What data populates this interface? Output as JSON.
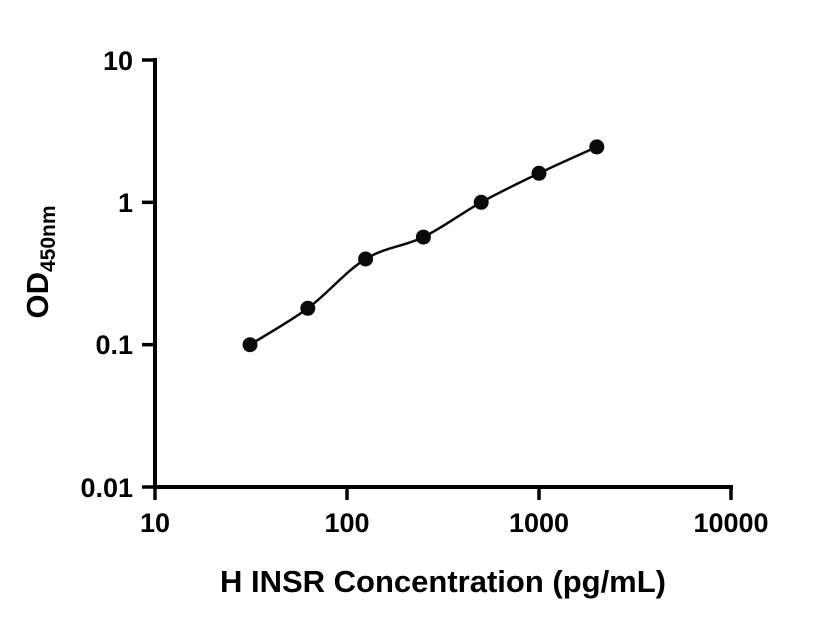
{
  "chart_data": {
    "type": "scatter",
    "title": "",
    "xlabel": "H INSR Concentration (pg/mL)",
    "ylabel_main": "OD",
    "ylabel_sub": "450nm",
    "x": [
      31.25,
      62.5,
      125,
      250,
      500,
      1000,
      2000
    ],
    "y": [
      0.1,
      0.18,
      0.4,
      0.57,
      1.0,
      1.6,
      2.45
    ],
    "x_scale": "log",
    "y_scale": "log",
    "xlim": [
      10,
      10000
    ],
    "ylim": [
      0.01,
      10
    ],
    "x_ticks": [
      10,
      100,
      1000,
      10000
    ],
    "y_ticks": [
      10,
      1,
      0.1,
      0.01
    ],
    "x_tick_labels": [
      "10",
      "100",
      "1000",
      "10000"
    ],
    "y_tick_labels": [
      "10",
      "1",
      "0.1",
      "0.01"
    ],
    "grid": false,
    "legend_position": "none",
    "marker": "filled-circle",
    "marker_color": "#0a0a0a",
    "line_color": "#0a0a0a",
    "axis_color": "#000000",
    "background_color": "#ffffff"
  }
}
